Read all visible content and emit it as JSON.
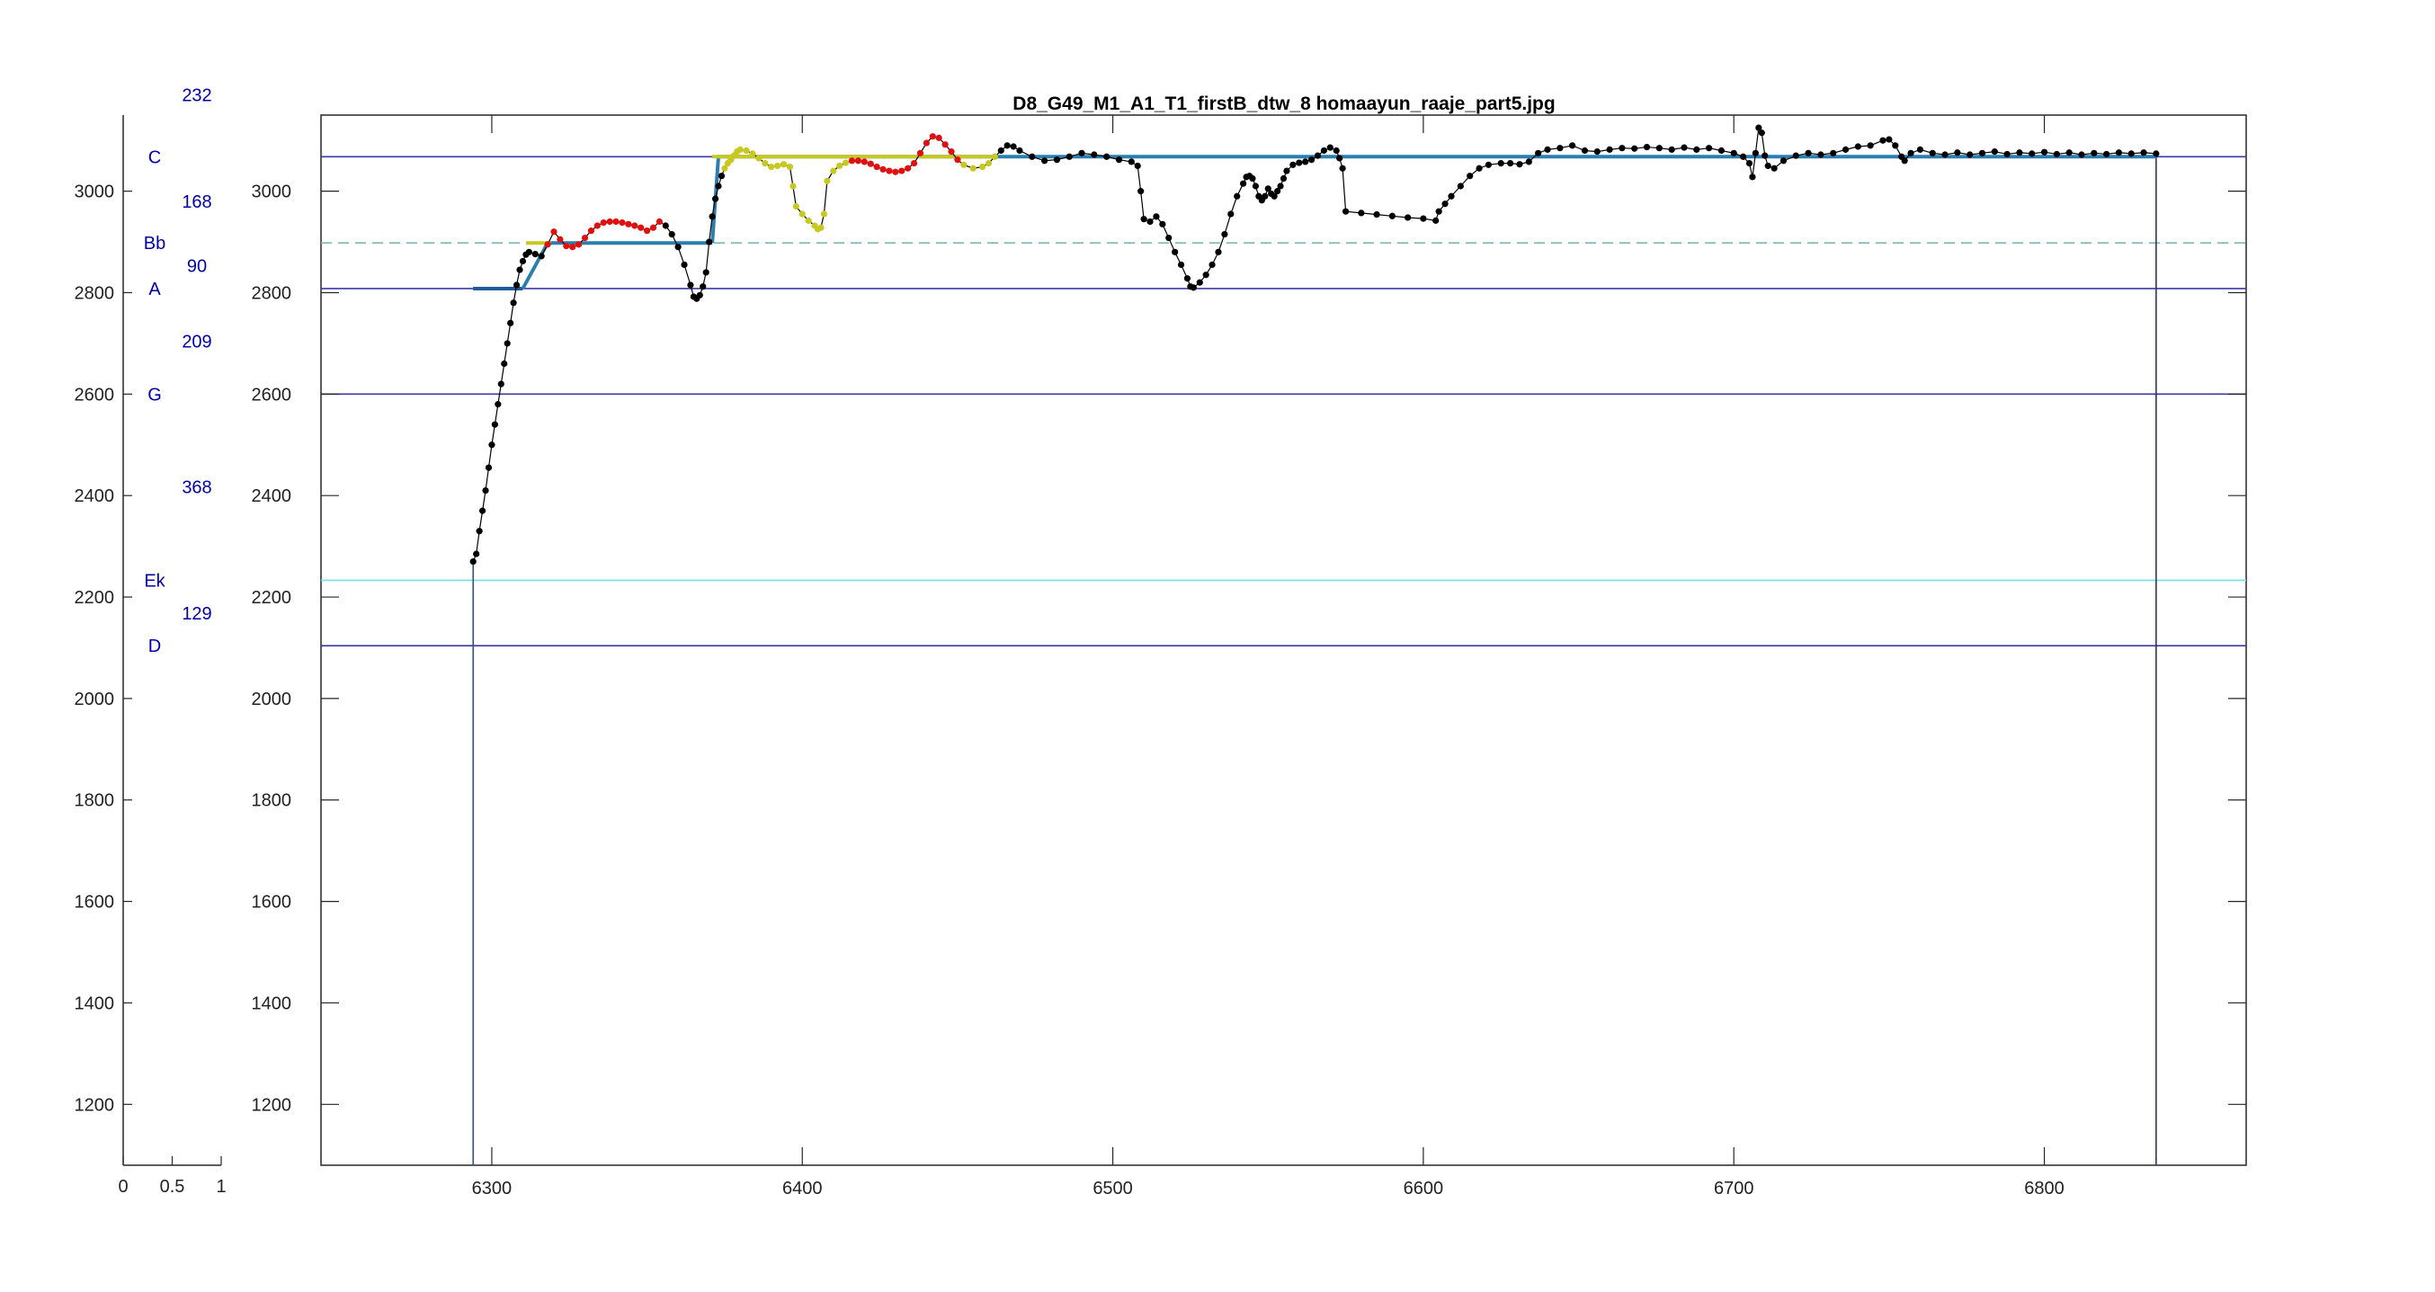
{
  "chart_data": [
    {
      "type": "bar",
      "x_ticks": [
        "0",
        "0.5",
        "1"
      ],
      "xlim": [
        0,
        1
      ],
      "y_ticks": [
        "1200",
        "1400",
        "1600",
        "1800",
        "2000",
        "2200",
        "2400",
        "2600",
        "2800",
        "3000"
      ],
      "ylim": [
        1080,
        3150
      ],
      "note_labels": [
        {
          "text": "D",
          "y": 3450
        },
        {
          "text": "C",
          "y": 3068
        },
        {
          "text": "Bb",
          "y": 2898
        },
        {
          "text": "A",
          "y": 2808
        },
        {
          "text": "G",
          "y": 2600
        },
        {
          "text": "Ek",
          "y": 2233
        },
        {
          "text": "D",
          "y": 2104
        }
      ],
      "count_labels": [
        {
          "text": "232",
          "y": 3190
        },
        {
          "text": "168",
          "y": 2980
        },
        {
          "text": "90",
          "y": 2853
        },
        {
          "text": "209",
          "y": 2704
        },
        {
          "text": "368",
          "y": 2417
        },
        {
          "text": "129",
          "y": 2168
        }
      ],
      "label_color": "#0000aa"
    },
    {
      "type": "line",
      "title": "D8_G49_M1_A1_T1_firstB_dtw_8 homaayun_raaje_part5.jpg",
      "xlim": [
        6245,
        6865
      ],
      "ylim": [
        1080,
        3150
      ],
      "x_ticks": [
        "6300",
        "6400",
        "6500",
        "6600",
        "6700",
        "6800"
      ],
      "y_ticks": [
        "1200",
        "1400",
        "1600",
        "1800",
        "2000",
        "2200",
        "2400",
        "2600",
        "2800",
        "3000"
      ],
      "grid": false,
      "reference_lines": [
        {
          "y": 3068,
          "style": "solid",
          "color": "#3a3aa0"
        },
        {
          "y": 2898,
          "style": "dashed",
          "color": "#7fb8b0"
        },
        {
          "y": 2808,
          "style": "solid",
          "color": "#3a3aa0"
        },
        {
          "y": 2600,
          "style": "solid",
          "color": "#3a3aa0"
        },
        {
          "y": 2233,
          "style": "solid",
          "color": "#70e0e0"
        },
        {
          "y": 2104,
          "style": "solid",
          "color": "#3a3aa0"
        }
      ],
      "boundary_lines": [
        {
          "x": 6294,
          "color": "#2a5a8a"
        },
        {
          "x": 6836,
          "color": "#333355"
        }
      ],
      "step_segments": [
        {
          "color": "#1f5a9a",
          "points": [
            [
              6294,
              2808
            ],
            [
              6310,
              2808
            ]
          ]
        },
        {
          "color": "#2a7fb0",
          "points": [
            [
              6310,
              2808
            ],
            [
              6318,
              2898
            ],
            [
              6371,
              2898
            ]
          ]
        },
        {
          "color": "#2a7fb0",
          "points": [
            [
              6371,
              2898
            ],
            [
              6373,
              3068
            ],
            [
              6836,
              3068
            ]
          ]
        },
        {
          "color": "#c8c820",
          "points": [
            [
              6311,
              2898
            ],
            [
              6319,
              2898
            ]
          ]
        },
        {
          "color": "#c8c820",
          "points": [
            [
              6371,
              3068
            ],
            [
              6462,
              3068
            ]
          ]
        }
      ],
      "pitch_series": {
        "color": "#000000",
        "points": [
          [
            6294,
            2270
          ],
          [
            6295,
            2285
          ],
          [
            6296,
            2330
          ],
          [
            6297,
            2370
          ],
          [
            6298,
            2410
          ],
          [
            6299,
            2455
          ],
          [
            6300,
            2500
          ],
          [
            6301,
            2540
          ],
          [
            6302,
            2580
          ],
          [
            6303,
            2620
          ],
          [
            6304,
            2660
          ],
          [
            6305,
            2700
          ],
          [
            6306,
            2740
          ],
          [
            6307,
            2780
          ],
          [
            6308,
            2815
          ],
          [
            6309,
            2845
          ],
          [
            6310,
            2862
          ],
          [
            6311,
            2875
          ],
          [
            6312,
            2880
          ],
          [
            6314,
            2876
          ],
          [
            6316,
            2872
          ],
          [
            6318,
            2895
          ],
          [
            6320,
            2920
          ],
          [
            6322,
            2905
          ],
          [
            6324,
            2892
          ],
          [
            6326,
            2890
          ],
          [
            6328,
            2895
          ],
          [
            6330,
            2908
          ],
          [
            6332,
            2922
          ],
          [
            6334,
            2932
          ],
          [
            6336,
            2938
          ],
          [
            6338,
            2940
          ],
          [
            6340,
            2940
          ],
          [
            6342,
            2938
          ],
          [
            6344,
            2935
          ],
          [
            6346,
            2932
          ],
          [
            6348,
            2928
          ],
          [
            6350,
            2922
          ],
          [
            6352,
            2928
          ],
          [
            6354,
            2940
          ],
          [
            6356,
            2932
          ],
          [
            6358,
            2915
          ],
          [
            6360,
            2890
          ],
          [
            6362,
            2855
          ],
          [
            6364,
            2815
          ],
          [
            6365,
            2792
          ],
          [
            6366,
            2788
          ],
          [
            6367,
            2795
          ],
          [
            6368,
            2812
          ],
          [
            6369,
            2840
          ],
          [
            6370,
            2900
          ],
          [
            6371,
            2950
          ],
          [
            6372,
            2985
          ],
          [
            6373,
            3010
          ],
          [
            6374,
            3030
          ],
          [
            6375,
            3045
          ],
          [
            6376,
            3055
          ],
          [
            6377,
            3062
          ],
          [
            6378,
            3070
          ],
          [
            6379,
            3078
          ],
          [
            6380,
            3082
          ],
          [
            6382,
            3080
          ],
          [
            6384,
            3074
          ],
          [
            6386,
            3065
          ],
          [
            6388,
            3055
          ],
          [
            6390,
            3048
          ],
          [
            6392,
            3050
          ],
          [
            6394,
            3053
          ],
          [
            6396,
            3048
          ],
          [
            6397,
            3010
          ],
          [
            6398,
            2970
          ],
          [
            6400,
            2955
          ],
          [
            6402,
            2942
          ],
          [
            6404,
            2932
          ],
          [
            6405,
            2925
          ],
          [
            6406,
            2928
          ],
          [
            6407,
            2955
          ],
          [
            6408,
            3020
          ],
          [
            6410,
            3040
          ],
          [
            6412,
            3050
          ],
          [
            6414,
            3056
          ],
          [
            6416,
            3060
          ],
          [
            6418,
            3060
          ],
          [
            6420,
            3058
          ],
          [
            6422,
            3054
          ],
          [
            6424,
            3048
          ],
          [
            6426,
            3043
          ],
          [
            6428,
            3040
          ],
          [
            6430,
            3038
          ],
          [
            6432,
            3040
          ],
          [
            6434,
            3045
          ],
          [
            6436,
            3055
          ],
          [
            6438,
            3075
          ],
          [
            6440,
            3095
          ],
          [
            6442,
            3108
          ],
          [
            6444,
            3105
          ],
          [
            6446,
            3092
          ],
          [
            6448,
            3078
          ],
          [
            6450,
            3062
          ],
          [
            6452,
            3052
          ],
          [
            6455,
            3045
          ],
          [
            6458,
            3048
          ],
          [
            6460,
            3055
          ],
          [
            6462,
            3068
          ],
          [
            6464,
            3080
          ],
          [
            6466,
            3090
          ],
          [
            6468,
            3088
          ],
          [
            6470,
            3080
          ],
          [
            6474,
            3068
          ],
          [
            6478,
            3060
          ],
          [
            6482,
            3062
          ],
          [
            6486,
            3068
          ],
          [
            6490,
            3075
          ],
          [
            6494,
            3072
          ],
          [
            6498,
            3068
          ],
          [
            6502,
            3062
          ],
          [
            6506,
            3058
          ],
          [
            6508,
            3050
          ],
          [
            6509,
            3000
          ],
          [
            6510,
            2945
          ],
          [
            6512,
            2940
          ],
          [
            6514,
            2950
          ],
          [
            6516,
            2935
          ],
          [
            6518,
            2908
          ],
          [
            6520,
            2880
          ],
          [
            6522,
            2855
          ],
          [
            6524,
            2828
          ],
          [
            6525,
            2812
          ],
          [
            6526,
            2810
          ],
          [
            6528,
            2820
          ],
          [
            6530,
            2835
          ],
          [
            6532,
            2855
          ],
          [
            6534,
            2880
          ],
          [
            6536,
            2915
          ],
          [
            6538,
            2955
          ],
          [
            6540,
            2990
          ],
          [
            6542,
            3015
          ],
          [
            6543,
            3028
          ],
          [
            6544,
            3030
          ],
          [
            6545,
            3025
          ],
          [
            6546,
            3010
          ],
          [
            6547,
            2990
          ],
          [
            6548,
            2982
          ],
          [
            6549,
            2990
          ],
          [
            6550,
            3005
          ],
          [
            6551,
            2995
          ],
          [
            6552,
            2990
          ],
          [
            6553,
            3000
          ],
          [
            6554,
            3010
          ],
          [
            6555,
            3025
          ],
          [
            6556,
            3040
          ],
          [
            6558,
            3052
          ],
          [
            6560,
            3056
          ],
          [
            6562,
            3058
          ],
          [
            6564,
            3062
          ],
          [
            6566,
            3070
          ],
          [
            6568,
            3080
          ],
          [
            6570,
            3086
          ],
          [
            6572,
            3080
          ],
          [
            6573,
            3065
          ],
          [
            6574,
            3045
          ],
          [
            6575,
            2960
          ],
          [
            6580,
            2957
          ],
          [
            6585,
            2954
          ],
          [
            6590,
            2951
          ],
          [
            6595,
            2948
          ],
          [
            6600,
            2946
          ],
          [
            6604,
            2942
          ],
          [
            6605,
            2960
          ],
          [
            6607,
            2975
          ],
          [
            6609,
            2990
          ],
          [
            6612,
            3010
          ],
          [
            6615,
            3030
          ],
          [
            6618,
            3045
          ],
          [
            6621,
            3052
          ],
          [
            6625,
            3055
          ],
          [
            6628,
            3055
          ],
          [
            6631,
            3053
          ],
          [
            6634,
            3058
          ],
          [
            6637,
            3075
          ],
          [
            6640,
            3082
          ],
          [
            6644,
            3085
          ],
          [
            6648,
            3090
          ],
          [
            6652,
            3080
          ],
          [
            6656,
            3078
          ],
          [
            6660,
            3082
          ],
          [
            6664,
            3085
          ],
          [
            6668,
            3084
          ],
          [
            6672,
            3087
          ],
          [
            6676,
            3085
          ],
          [
            6680,
            3082
          ],
          [
            6684,
            3086
          ],
          [
            6688,
            3082
          ],
          [
            6692,
            3085
          ],
          [
            6696,
            3080
          ],
          [
            6700,
            3075
          ],
          [
            6703,
            3068
          ],
          [
            6705,
            3055
          ],
          [
            6706,
            3028
          ],
          [
            6707,
            3075
          ],
          [
            6708,
            3125
          ],
          [
            6709,
            3115
          ],
          [
            6710,
            3070
          ],
          [
            6711,
            3050
          ],
          [
            6713,
            3045
          ],
          [
            6716,
            3060
          ],
          [
            6720,
            3070
          ],
          [
            6724,
            3075
          ],
          [
            6728,
            3072
          ],
          [
            6732,
            3075
          ],
          [
            6736,
            3082
          ],
          [
            6740,
            3088
          ],
          [
            6744,
            3090
          ],
          [
            6748,
            3100
          ],
          [
            6750,
            3102
          ],
          [
            6752,
            3090
          ],
          [
            6754,
            3068
          ],
          [
            6755,
            3060
          ],
          [
            6757,
            3075
          ],
          [
            6760,
            3082
          ],
          [
            6764,
            3075
          ],
          [
            6768,
            3072
          ],
          [
            6772,
            3076
          ],
          [
            6776,
            3072
          ],
          [
            6780,
            3075
          ],
          [
            6784,
            3078
          ],
          [
            6788,
            3073
          ],
          [
            6792,
            3076
          ],
          [
            6796,
            3074
          ],
          [
            6800,
            3077
          ],
          [
            6804,
            3073
          ],
          [
            6808,
            3076
          ],
          [
            6812,
            3072
          ],
          [
            6816,
            3075
          ],
          [
            6820,
            3073
          ],
          [
            6824,
            3076
          ],
          [
            6828,
            3074
          ],
          [
            6832,
            3076
          ],
          [
            6836,
            3074
          ]
        ]
      },
      "highlight_ranges": [
        {
          "color": "#e01010",
          "x_range": [
            6318,
            6354
          ]
        },
        {
          "color": "#e01010",
          "x_range": [
            6415,
            6450
          ]
        },
        {
          "color": "#c8c820",
          "x_range": [
            6375,
            6414
          ]
        },
        {
          "color": "#c8c820",
          "x_range": [
            6451,
            6462
          ]
        }
      ]
    }
  ]
}
